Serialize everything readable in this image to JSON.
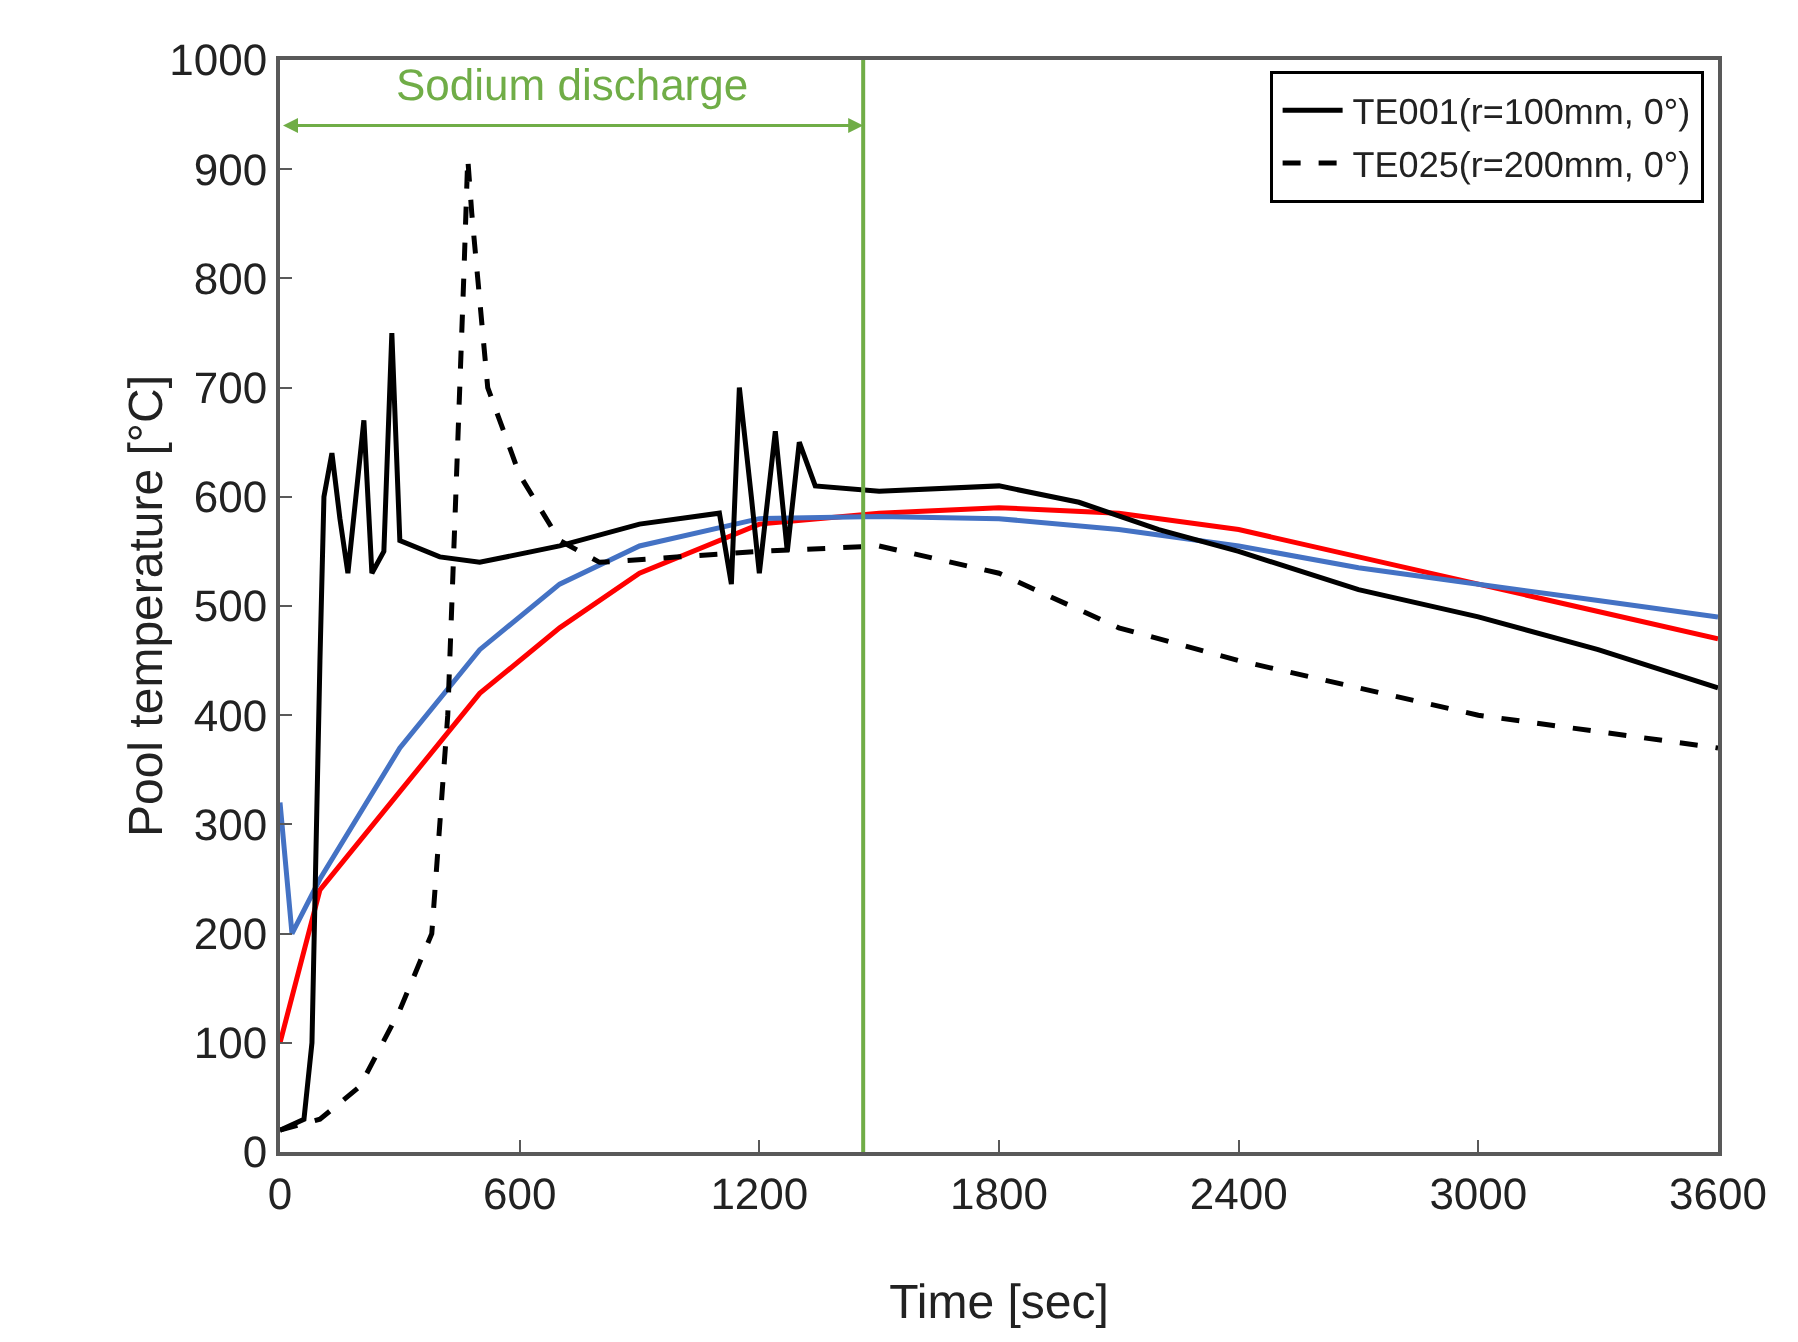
{
  "chart_data": {
    "type": "line",
    "xlabel": "Time [sec]",
    "ylabel": "Pool temperature [°C]",
    "xlim": [
      0,
      3600
    ],
    "xticks": [
      0,
      600,
      1200,
      1800,
      2400,
      3000,
      3600
    ],
    "ylim": [
      0,
      1000
    ],
    "yticks": [
      0,
      100,
      200,
      300,
      400,
      500,
      600,
      700,
      800,
      900,
      1000
    ],
    "grid": false,
    "legend": "top right",
    "marker": "none",
    "ref_lines": [
      {
        "axis": "x",
        "value": 1460,
        "label": "Sodium discharge",
        "color": "#70ad47"
      }
    ],
    "series": [
      {
        "color": "#ff0000",
        "line_style": "solid",
        "x": [
          0,
          100,
          300,
          500,
          700,
          900,
          1200,
          1500,
          1800,
          2100,
          2400,
          2700,
          3000,
          3300,
          3600
        ],
        "values": [
          100,
          240,
          330,
          420,
          480,
          530,
          575,
          585,
          590,
          585,
          570,
          545,
          520,
          495,
          470
        ]
      },
      {
        "color": "#4472c4",
        "line_style": "solid",
        "x": [
          0,
          30,
          100,
          300,
          500,
          700,
          900,
          1200,
          1500,
          1800,
          2100,
          2400,
          2700,
          3000,
          3300,
          3600
        ],
        "values": [
          320,
          200,
          250,
          370,
          460,
          520,
          555,
          580,
          582,
          580,
          570,
          555,
          535,
          520,
          505,
          490
        ]
      },
      {
        "name": "TE001(r=100mm, 0°)",
        "color": "#000000",
        "line_style": "solid",
        "x": [
          0,
          60,
          80,
          100,
          110,
          130,
          150,
          170,
          190,
          210,
          230,
          260,
          280,
          300,
          400,
          500,
          700,
          900,
          1100,
          1130,
          1150,
          1180,
          1200,
          1240,
          1270,
          1300,
          1340,
          1500,
          1800,
          2000,
          2200,
          2400,
          2700,
          3000,
          3300,
          3600
        ],
        "values": [
          20,
          30,
          100,
          450,
          600,
          640,
          580,
          530,
          600,
          670,
          530,
          550,
          750,
          560,
          545,
          540,
          555,
          575,
          585,
          520,
          700,
          600,
          530,
          660,
          550,
          650,
          610,
          605,
          610,
          595,
          570,
          550,
          515,
          490,
          460,
          425
        ]
      },
      {
        "name": "TE025(r=200mm, 0°)",
        "color": "#000000",
        "line_style": "dashed",
        "x": [
          0,
          100,
          200,
          300,
          380,
          420,
          440,
          460,
          470,
          480,
          520,
          600,
          700,
          800,
          1000,
          1200,
          1500,
          1800,
          2100,
          2400,
          2700,
          3000,
          3300,
          3600
        ],
        "values": [
          20,
          30,
          60,
          130,
          200,
          400,
          600,
          800,
          910,
          860,
          700,
          620,
          560,
          540,
          545,
          550,
          555,
          530,
          480,
          450,
          425,
          400,
          385,
          370
        ]
      }
    ]
  }
}
